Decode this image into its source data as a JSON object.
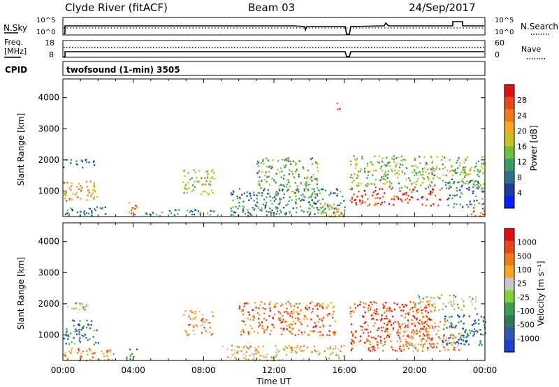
{
  "header": {
    "radar": "Clyde River (fitACF)",
    "beam": "Beam 03",
    "date": "24/Sep/2017"
  },
  "status_panels": {
    "nsky_label": "N.Sky",
    "nsearch_label": "N.Search",
    "freq_label_1": "Freq.",
    "freq_label_2": "[MHz]",
    "cpid_label": "CPID",
    "nave_label": "Nave",
    "nsky_ticks": [
      "10^5",
      "10^0"
    ],
    "nsearch_ticks": [
      "10^5",
      "10^0"
    ],
    "freq_ticks": [
      "18",
      "8"
    ],
    "nave_ticks": [
      "60",
      "0"
    ],
    "cpid_text": "twofsound (1-min) 3505"
  },
  "chart_data": [
    {
      "type": "heatmap",
      "name": "power",
      "title": "",
      "xlabel": "",
      "ylabel": "Slant Range [km]",
      "colorbar_label": "Power [dB]",
      "xlim": [
        0,
        24
      ],
      "ylim": [
        180,
        4600
      ],
      "x_tick_labels": [
        "00:00",
        "04:00",
        "08:00",
        "12:00",
        "16:00",
        "20:00",
        "00:00"
      ],
      "y_ticks": [
        1000,
        2000,
        3000,
        4000
      ],
      "colorbar_ticks": [
        "4",
        "8",
        "12",
        "16",
        "20",
        "24",
        "28"
      ],
      "colorbar_colors": [
        "#0a1cff",
        "#1e3c9a",
        "#2e6f8e",
        "#3c9a6a",
        "#6fbf3a",
        "#c9c31f",
        "#f2a81d",
        "#f07a18",
        "#e8461a",
        "#e01010"
      ],
      "patches": [
        {
          "t": [
            0.0,
            1.9
          ],
          "r": [
            700,
            1350
          ],
          "level": 0.65
        },
        {
          "t": [
            0.0,
            1.8
          ],
          "r": [
            1750,
            2050
          ],
          "level": 0.25
        },
        {
          "t": [
            0.0,
            2.5
          ],
          "r": [
            200,
            520
          ],
          "level": 0.3
        },
        {
          "t": [
            3.5,
            4.3
          ],
          "r": [
            220,
            650
          ],
          "level": 0.8
        },
        {
          "t": [
            6.8,
            8.6
          ],
          "r": [
            900,
            1700
          ],
          "level": 0.55
        },
        {
          "t": [
            4.5,
            9.0
          ],
          "r": [
            220,
            420
          ],
          "level": 0.3
        },
        {
          "t": [
            11.0,
            14.5
          ],
          "r": [
            1000,
            2100
          ],
          "level": 0.4
        },
        {
          "t": [
            9.5,
            16.0
          ],
          "r": [
            220,
            1100
          ],
          "level": 0.3
        },
        {
          "t": [
            14.6,
            16.0
          ],
          "r": [
            200,
            650
          ],
          "level": 0.6
        },
        {
          "t": [
            15.5,
            15.8
          ],
          "r": [
            3500,
            3900
          ],
          "level": 0.9
        },
        {
          "t": [
            16.3,
            21.5
          ],
          "r": [
            550,
            1100
          ],
          "level": 0.9
        },
        {
          "t": [
            16.3,
            24.0
          ],
          "r": [
            1100,
            2150
          ],
          "level": 0.45
        },
        {
          "t": [
            21.8,
            24.0
          ],
          "r": [
            500,
            1400
          ],
          "level": 0.3
        },
        {
          "t": [
            23.0,
            24.0
          ],
          "r": [
            200,
            500
          ],
          "level": 0.8
        }
      ]
    },
    {
      "type": "heatmap",
      "name": "velocity",
      "title": "",
      "xlabel": "Time UT",
      "ylabel": "Slant Range [km]",
      "colorbar_label": "Velocity [m s⁻¹]",
      "xlim": [
        0,
        24
      ],
      "ylim": [
        180,
        4600
      ],
      "x_tick_labels": [
        "00:00",
        "04:00",
        "08:00",
        "12:00",
        "16:00",
        "20:00",
        "00:00"
      ],
      "y_ticks": [
        1000,
        2000,
        3000,
        4000
      ],
      "colorbar_ticks": [
        "1000",
        "500",
        "100",
        "25",
        "-25",
        "-100",
        "-500",
        "-1000"
      ],
      "colorbar_colors": [
        "#1d3ed8",
        "#2f57b0",
        "#2f7a5a",
        "#3aa04a",
        "#7dd13a",
        "#c8c8c8",
        "#f2a81d",
        "#f07a18",
        "#e8461a",
        "#e01010"
      ],
      "patches": [
        {
          "t": [
            0.0,
            1.6
          ],
          "r": [
            1800,
            2050
          ],
          "level": 0.5
        },
        {
          "t": [
            0.0,
            2.0
          ],
          "r": [
            700,
            1500
          ],
          "level": 0.25
        },
        {
          "t": [
            0.0,
            3.0
          ],
          "r": [
            200,
            600
          ],
          "level": 0.7
        },
        {
          "t": [
            3.5,
            4.2
          ],
          "r": [
            200,
            600
          ],
          "level": 0.3
        },
        {
          "t": [
            6.8,
            8.5
          ],
          "r": [
            1000,
            1800
          ],
          "level": 0.72
        },
        {
          "t": [
            10.0,
            15.5
          ],
          "r": [
            1000,
            2100
          ],
          "level": 0.78
        },
        {
          "t": [
            9.0,
            16.0
          ],
          "r": [
            200,
            700
          ],
          "level": 0.62
        },
        {
          "t": [
            16.3,
            21.0
          ],
          "r": [
            500,
            2100
          ],
          "level": 0.85
        },
        {
          "t": [
            19.0,
            22.5
          ],
          "r": [
            500,
            1500
          ],
          "level": 0.68
        },
        {
          "t": [
            21.5,
            24.0
          ],
          "r": [
            700,
            1700
          ],
          "level": 0.2
        },
        {
          "t": [
            20.0,
            23.5
          ],
          "r": [
            1800,
            2300
          ],
          "level": 0.5
        }
      ]
    }
  ]
}
